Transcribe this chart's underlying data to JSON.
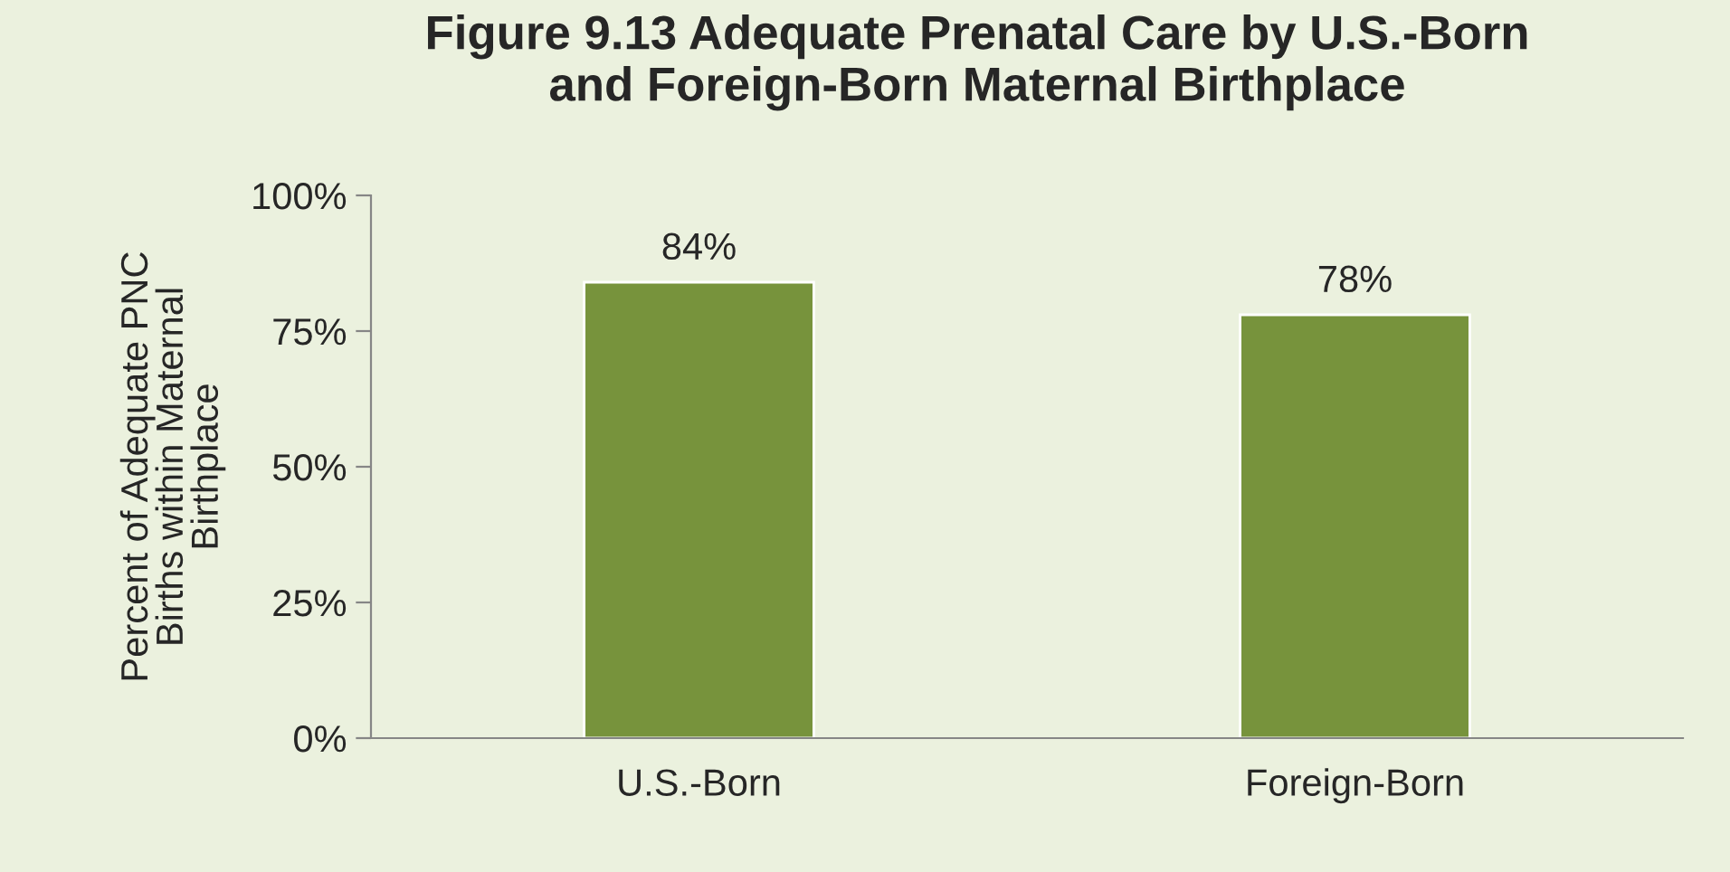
{
  "chart_data": {
    "type": "bar",
    "title": "Figure 9.13 Adequate Prenatal Care by U.S.-Born\nand Foreign-Born Maternal Birthplace",
    "ylabel": "Percent of Adequate PNC\nBirths within Maternal\nBirthplace",
    "categories": [
      "U.S.-Born",
      "Foreign-Born"
    ],
    "values": [
      84,
      78
    ],
    "value_labels": [
      "84%",
      "78%"
    ],
    "color": "#77933c",
    "ylim": [
      0,
      100
    ],
    "yticks": [
      {
        "value": 0,
        "label": "0%"
      },
      {
        "value": 25,
        "label": "25%"
      },
      {
        "value": 50,
        "label": "50%"
      },
      {
        "value": 75,
        "label": "75%"
      },
      {
        "value": 100,
        "label": "100%"
      }
    ],
    "grid": false,
    "legend": false
  }
}
